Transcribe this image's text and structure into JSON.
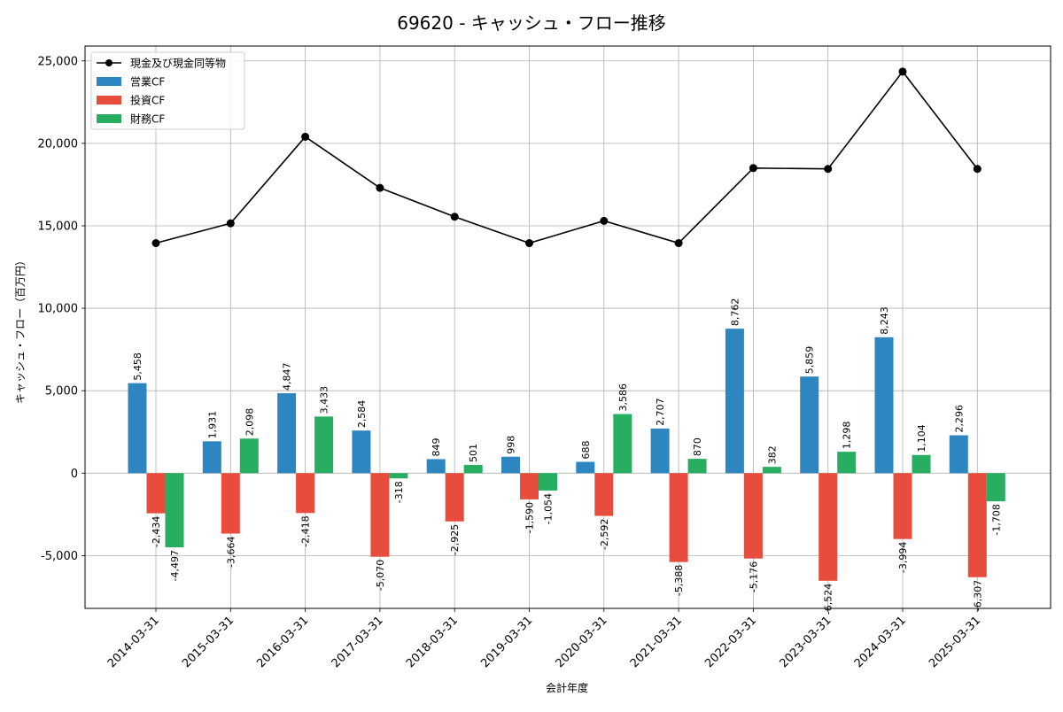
{
  "chart_data": {
    "type": "bar",
    "title": "69620 - キャッシュ・フロー推移",
    "xlabel": "会計年度",
    "ylabel": "キャッシュ・フロー（百万円）",
    "ylim": [
      -8200,
      25900
    ],
    "yticks": [
      -5000,
      0,
      5000,
      10000,
      15000,
      20000,
      25000
    ],
    "ytick_labels": [
      "-5,000",
      "0",
      "5,000",
      "10,000",
      "15,000",
      "20,000",
      "25,000"
    ],
    "grid": true,
    "legend_position": "top-left",
    "categories": [
      "2014-03-31",
      "2015-03-31",
      "2016-03-31",
      "2017-03-31",
      "2018-03-31",
      "2019-03-31",
      "2020-03-31",
      "2021-03-31",
      "2022-03-31",
      "2023-03-31",
      "2024-03-31",
      "2025-03-31"
    ],
    "series": [
      {
        "name": "営業CF",
        "kind": "bar",
        "color": "#2e86c1",
        "values": [
          5458,
          1931,
          4847,
          2584,
          849,
          998,
          688,
          2707,
          8762,
          5859,
          8243,
          2296
        ],
        "labels": [
          "5,458",
          "1,931",
          "4,847",
          "2,584",
          "849",
          "998",
          "688",
          "2,707",
          "8,762",
          "5,859",
          "8,243",
          "2,296"
        ]
      },
      {
        "name": "投資CF",
        "kind": "bar",
        "color": "#e74c3c",
        "values": [
          -2434,
          -3664,
          -2418,
          -5070,
          -2925,
          -1590,
          -2592,
          -5388,
          -5176,
          -6524,
          -3994,
          -6307
        ],
        "labels": [
          "-2,434",
          "-3,664",
          "-2,418",
          "-5,070",
          "-2,925",
          "-1,590",
          "-2,592",
          "-5,388",
          "-5,176",
          "-6,524",
          "-3,994",
          "-6,307"
        ]
      },
      {
        "name": "財務CF",
        "kind": "bar",
        "color": "#27ae60",
        "values": [
          -4497,
          2098,
          3433,
          -318,
          501,
          -1054,
          3586,
          870,
          382,
          1298,
          1104,
          -1708
        ],
        "labels": [
          "-4,497",
          "2,098",
          "3,433",
          "-318",
          "501",
          "-1,054",
          "3,586",
          "870",
          "382",
          "1,298",
          "1,104",
          "-1,708"
        ]
      },
      {
        "name": "現金及び現金同等物",
        "kind": "line",
        "color": "#000000",
        "values": [
          13950,
          15150,
          20400,
          17300,
          15550,
          13950,
          15300,
          13950,
          18500,
          18450,
          24350,
          18450
        ]
      }
    ]
  }
}
